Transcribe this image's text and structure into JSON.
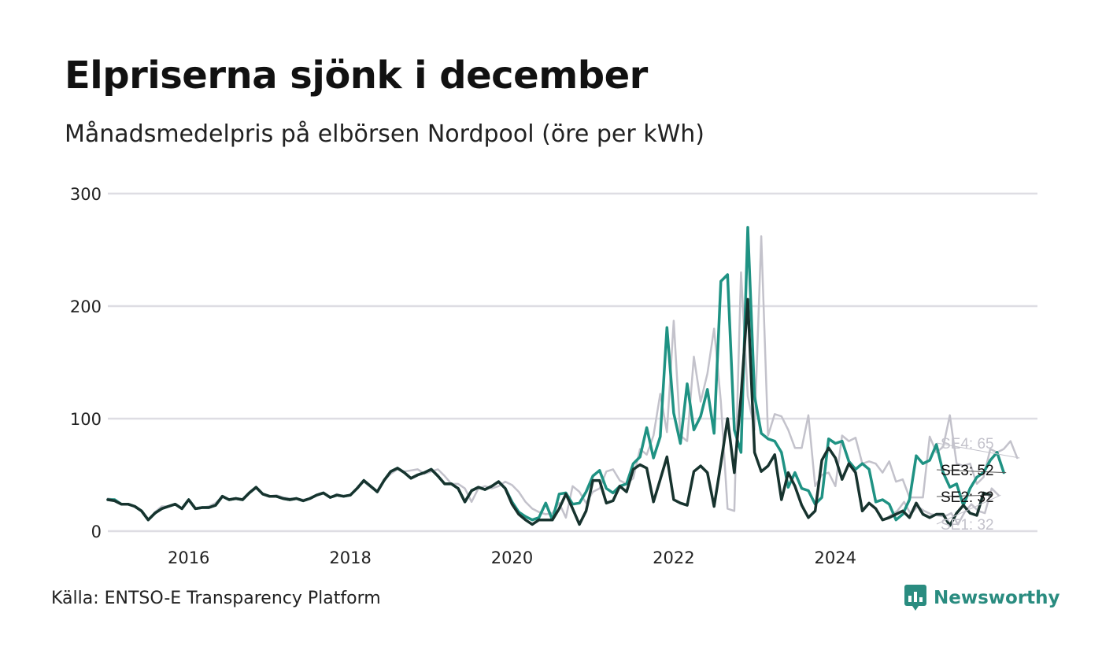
{
  "header": {
    "title": "Elpriserna sjönk i december",
    "subtitle": "Månadsmedelpris på elbörsen Nordpool (öre per kWh)"
  },
  "footer": {
    "source": "Källa: ENTSO-E Transparency Platform",
    "brand": "Newsworthy"
  },
  "colors": {
    "SE1": "#c3c2cb",
    "SE2": "#17332e",
    "SE3": "#1f9283",
    "SE4": "#c3c2cb",
    "grid": "#dedde3"
  },
  "chart_data": {
    "type": "line",
    "title": "Elpriserna sjönk i december",
    "subtitle": "Månadsmedelpris på elbörsen Nordpool (öre per kWh)",
    "xlabel": "",
    "ylabel": "",
    "ylim": [
      0,
      300
    ],
    "y_ticks": [
      0,
      100,
      200,
      300
    ],
    "x_ticks": [
      2016,
      2018,
      2020,
      2022,
      2024
    ],
    "x_start": 2015.0,
    "x_end": 2026.5,
    "grid": true,
    "legend": "end-of-line labels (right)",
    "series": [
      {
        "name": "SE4",
        "end_label": "SE4: 65",
        "start": 2015.0,
        "values": [
          29,
          28,
          24,
          24,
          22,
          18,
          10,
          17,
          22,
          22,
          24,
          20,
          28,
          20,
          21,
          22,
          25,
          31,
          28,
          29,
          28,
          34,
          38,
          33,
          31,
          32,
          30,
          29,
          29,
          28,
          29,
          32,
          34,
          30,
          33,
          31,
          32,
          38,
          44,
          39,
          35,
          45,
          51,
          55,
          53,
          54,
          55,
          51,
          53,
          55,
          49,
          42,
          42,
          38,
          26,
          38,
          40,
          38,
          40,
          44,
          41,
          35,
          26,
          20,
          17,
          15,
          16,
          25,
          12,
          40,
          35,
          25,
          35,
          38,
          53,
          55,
          45,
          42,
          47,
          73,
          68,
          85,
          122,
          88,
          187,
          85,
          80,
          155,
          115,
          140,
          180,
          115,
          20,
          18,
          230,
          120,
          90,
          262,
          85,
          104,
          102,
          90,
          74,
          74,
          103,
          40,
          50,
          52,
          40,
          85,
          80,
          83,
          60,
          62,
          60,
          52,
          62,
          44,
          46,
          30,
          30,
          30,
          84,
          70,
          75,
          103,
          60,
          58,
          60,
          42,
          48,
          73,
          70,
          73,
          80,
          65
        ]
      },
      {
        "name": "SE3",
        "end_label": "SE3: 52",
        "start": 2015.0,
        "values": [
          28,
          28,
          24,
          24,
          22,
          18,
          10,
          16,
          20,
          22,
          24,
          20,
          28,
          20,
          21,
          21,
          23,
          31,
          28,
          29,
          28,
          34,
          39,
          33,
          31,
          31,
          29,
          28,
          29,
          27,
          29,
          32,
          34,
          30,
          32,
          31,
          32,
          38,
          45,
          40,
          35,
          45,
          53,
          56,
          52,
          47,
          50,
          52,
          55,
          49,
          42,
          42,
          38,
          26,
          36,
          39,
          37,
          40,
          44,
          38,
          26,
          17,
          13,
          10,
          12,
          25,
          10,
          33,
          34,
          24,
          25,
          35,
          49,
          54,
          38,
          34,
          40,
          42,
          60,
          66,
          92,
          65,
          84,
          181,
          105,
          78,
          131,
          90,
          102,
          126,
          87,
          222,
          228,
          90,
          70,
          270,
          120,
          87,
          82,
          80,
          70,
          39,
          52,
          38,
          36,
          24,
          30,
          82,
          78,
          80,
          62,
          55,
          60,
          55,
          26,
          28,
          24,
          10,
          15,
          28,
          67,
          60,
          63,
          77,
          52,
          39,
          42,
          23,
          38,
          48,
          52,
          63,
          70,
          52
        ]
      },
      {
        "name": "SE2",
        "end_label": "SE2: 32",
        "start": 2015.0,
        "values": [
          28,
          27,
          24,
          24,
          22,
          18,
          10,
          16,
          20,
          22,
          24,
          20,
          28,
          20,
          21,
          21,
          23,
          31,
          28,
          29,
          28,
          34,
          39,
          33,
          31,
          31,
          29,
          28,
          29,
          27,
          29,
          32,
          34,
          30,
          32,
          31,
          32,
          38,
          45,
          40,
          35,
          45,
          53,
          56,
          52,
          47,
          50,
          52,
          55,
          49,
          42,
          42,
          38,
          26,
          36,
          39,
          37,
          40,
          44,
          38,
          24,
          15,
          10,
          6,
          10,
          10,
          10,
          20,
          33,
          20,
          6,
          18,
          45,
          45,
          25,
          27,
          40,
          35,
          55,
          59,
          56,
          26,
          46,
          66,
          28,
          25,
          23,
          53,
          58,
          52,
          22,
          60,
          100,
          52,
          120,
          206,
          70,
          53,
          58,
          68,
          28,
          52,
          40,
          23,
          12,
          18,
          63,
          74,
          65,
          46,
          60,
          52,
          18,
          25,
          20,
          10,
          12,
          15,
          18,
          12,
          25,
          15,
          12,
          15,
          15,
          5,
          16,
          23,
          16,
          14,
          34,
          32
        ]
      },
      {
        "name": "SE1",
        "end_label": "SE1: 32",
        "start": 2024.6,
        "values": [
          10,
          14,
          18,
          26,
          15,
          22,
          18,
          15,
          14,
          13,
          16,
          6,
          17,
          24,
          18,
          16,
          38,
          32
        ]
      }
    ]
  }
}
